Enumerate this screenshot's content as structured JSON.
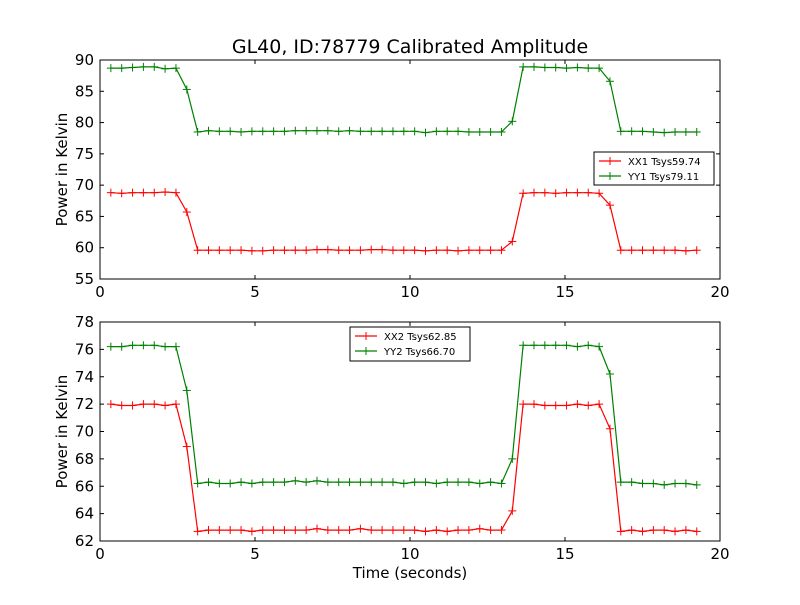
{
  "title": "GL40, ID:78779 Calibrated Amplitude",
  "chart_data": [
    {
      "type": "line",
      "ylabel": "Power in Kelvin",
      "xlabel": "",
      "xlim": [
        0,
        20
      ],
      "ylim": [
        55,
        90
      ],
      "xticks": [
        "0",
        "5",
        "10",
        "15",
        "20"
      ],
      "yticks": [
        "55",
        "60",
        "65",
        "70",
        "75",
        "80",
        "85",
        "90"
      ],
      "legend_position": "right",
      "marker": "plus",
      "series": [
        {
          "name": "XX1 Tsys59.74",
          "color": "#ff0000",
          "x": [
            0.35,
            0.7,
            1.05,
            1.4,
            1.75,
            2.1,
            2.45,
            2.8,
            3.15,
            3.5,
            3.85,
            4.2,
            4.55,
            4.9,
            5.25,
            5.6,
            5.95,
            6.3,
            6.65,
            7.0,
            7.35,
            7.7,
            8.05,
            8.4,
            8.75,
            9.1,
            9.45,
            9.8,
            10.15,
            10.5,
            10.85,
            11.2,
            11.55,
            11.9,
            12.25,
            12.6,
            12.95,
            13.3,
            13.65,
            14.0,
            14.35,
            14.7,
            15.05,
            15.4,
            15.75,
            16.1,
            16.45,
            16.8,
            17.15,
            17.5,
            17.85,
            18.2,
            18.55,
            18.9,
            19.25
          ],
          "y": [
            68.8,
            68.7,
            68.8,
            68.8,
            68.8,
            68.9,
            68.8,
            65.7,
            59.6,
            59.6,
            59.6,
            59.6,
            59.6,
            59.5,
            59.5,
            59.6,
            59.6,
            59.6,
            59.6,
            59.7,
            59.7,
            59.6,
            59.6,
            59.6,
            59.7,
            59.7,
            59.6,
            59.6,
            59.6,
            59.5,
            59.6,
            59.6,
            59.5,
            59.6,
            59.6,
            59.6,
            59.6,
            61.0,
            68.7,
            68.8,
            68.8,
            68.7,
            68.8,
            68.8,
            68.8,
            68.7,
            66.8,
            59.6,
            59.6,
            59.6,
            59.6,
            59.6,
            59.6,
            59.5,
            59.6
          ]
        },
        {
          "name": "YY1 Tsys79.11",
          "color": "#008000",
          "x": [
            0.35,
            0.7,
            1.05,
            1.4,
            1.75,
            2.1,
            2.45,
            2.8,
            3.15,
            3.5,
            3.85,
            4.2,
            4.55,
            4.9,
            5.25,
            5.6,
            5.95,
            6.3,
            6.65,
            7.0,
            7.35,
            7.7,
            8.05,
            8.4,
            8.75,
            9.1,
            9.45,
            9.8,
            10.15,
            10.5,
            10.85,
            11.2,
            11.55,
            11.9,
            12.25,
            12.6,
            12.95,
            13.3,
            13.65,
            14.0,
            14.35,
            14.7,
            15.05,
            15.4,
            15.75,
            16.1,
            16.45,
            16.8,
            17.15,
            17.5,
            17.85,
            18.2,
            18.55,
            18.9,
            19.25
          ],
          "y": [
            88.7,
            88.7,
            88.8,
            88.9,
            88.9,
            88.6,
            88.7,
            85.3,
            78.5,
            78.7,
            78.6,
            78.6,
            78.5,
            78.6,
            78.6,
            78.6,
            78.6,
            78.7,
            78.7,
            78.7,
            78.7,
            78.6,
            78.7,
            78.6,
            78.6,
            78.6,
            78.6,
            78.6,
            78.6,
            78.4,
            78.6,
            78.6,
            78.6,
            78.5,
            78.5,
            78.5,
            78.5,
            80.2,
            88.9,
            88.9,
            88.8,
            88.8,
            88.7,
            88.8,
            88.7,
            88.7,
            86.6,
            78.6,
            78.6,
            78.6,
            78.5,
            78.4,
            78.5,
            78.5,
            78.5
          ]
        }
      ]
    },
    {
      "type": "line",
      "ylabel": "Power in Kelvin",
      "xlabel": "Time (seconds)",
      "xlim": [
        0,
        20
      ],
      "ylim": [
        62,
        78
      ],
      "xticks": [
        "0",
        "5",
        "10",
        "15",
        "20"
      ],
      "yticks": [
        "62",
        "64",
        "66",
        "68",
        "70",
        "72",
        "74",
        "76",
        "78"
      ],
      "legend_position": "top-center",
      "marker": "plus",
      "series": [
        {
          "name": "XX2 Tsys62.85",
          "color": "#ff0000",
          "x": [
            0.35,
            0.7,
            1.05,
            1.4,
            1.75,
            2.1,
            2.45,
            2.8,
            3.15,
            3.5,
            3.85,
            4.2,
            4.55,
            4.9,
            5.25,
            5.6,
            5.95,
            6.3,
            6.65,
            7.0,
            7.35,
            7.7,
            8.05,
            8.4,
            8.75,
            9.1,
            9.45,
            9.8,
            10.15,
            10.5,
            10.85,
            11.2,
            11.55,
            11.9,
            12.25,
            12.6,
            12.95,
            13.3,
            13.65,
            14.0,
            14.35,
            14.7,
            15.05,
            15.4,
            15.75,
            16.1,
            16.45,
            16.8,
            17.15,
            17.5,
            17.85,
            18.2,
            18.55,
            18.9,
            19.25
          ],
          "y": [
            72.0,
            71.9,
            71.9,
            72.0,
            72.0,
            71.9,
            72.0,
            68.9,
            62.7,
            62.8,
            62.8,
            62.8,
            62.8,
            62.7,
            62.8,
            62.8,
            62.8,
            62.8,
            62.8,
            62.9,
            62.8,
            62.8,
            62.8,
            62.9,
            62.8,
            62.8,
            62.8,
            62.8,
            62.8,
            62.7,
            62.8,
            62.7,
            62.8,
            62.8,
            62.9,
            62.8,
            62.8,
            64.2,
            72.0,
            72.0,
            71.9,
            71.9,
            71.9,
            72.0,
            71.9,
            72.0,
            70.2,
            62.7,
            62.8,
            62.7,
            62.8,
            62.8,
            62.7,
            62.8,
            62.7
          ]
        },
        {
          "name": "YY2 Tsys66.70",
          "color": "#008000",
          "x": [
            0.35,
            0.7,
            1.05,
            1.4,
            1.75,
            2.1,
            2.45,
            2.8,
            3.15,
            3.5,
            3.85,
            4.2,
            4.55,
            4.9,
            5.25,
            5.6,
            5.95,
            6.3,
            6.65,
            7.0,
            7.35,
            7.7,
            8.05,
            8.4,
            8.75,
            9.1,
            9.45,
            9.8,
            10.15,
            10.5,
            10.85,
            11.2,
            11.55,
            11.9,
            12.25,
            12.6,
            12.95,
            13.3,
            13.65,
            14.0,
            14.35,
            14.7,
            15.05,
            15.4,
            15.75,
            16.1,
            16.45,
            16.8,
            17.15,
            17.5,
            17.85,
            18.2,
            18.55,
            18.9,
            19.25
          ],
          "y": [
            76.2,
            76.2,
            76.3,
            76.3,
            76.3,
            76.2,
            76.2,
            73.0,
            66.2,
            66.3,
            66.2,
            66.2,
            66.3,
            66.2,
            66.3,
            66.3,
            66.3,
            66.4,
            66.3,
            66.4,
            66.3,
            66.3,
            66.3,
            66.3,
            66.3,
            66.3,
            66.3,
            66.2,
            66.3,
            66.3,
            66.2,
            66.3,
            66.3,
            66.3,
            66.2,
            66.3,
            66.2,
            68.0,
            76.3,
            76.3,
            76.3,
            76.3,
            76.3,
            76.2,
            76.3,
            76.2,
            74.2,
            66.3,
            66.3,
            66.2,
            66.2,
            66.1,
            66.2,
            66.2,
            66.1
          ]
        }
      ]
    }
  ]
}
